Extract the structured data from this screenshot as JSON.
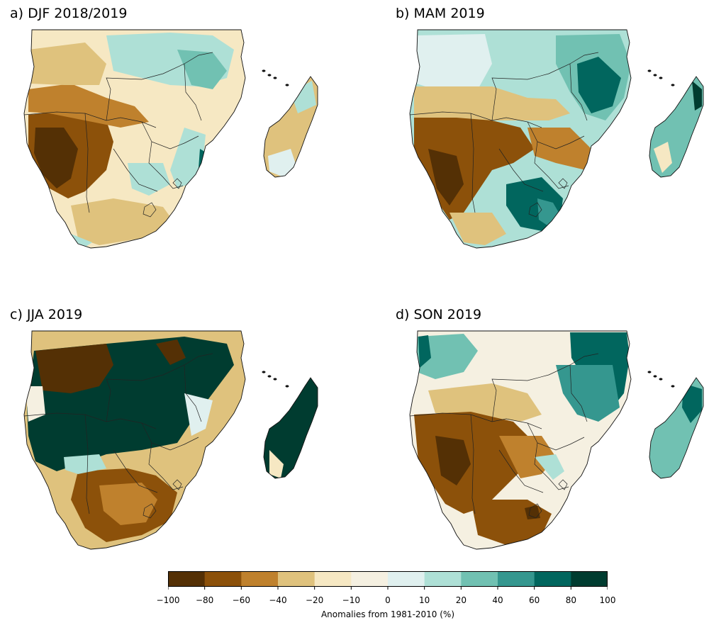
{
  "panels": [
    {
      "id": "a",
      "title": "a) DJF 2018/2019",
      "pattern": "djf"
    },
    {
      "id": "b",
      "title": "b) MAM 2019",
      "pattern": "mam"
    },
    {
      "id": "c",
      "title": "c) JJA 2019",
      "pattern": "jja"
    },
    {
      "id": "d",
      "title": "d) SON 2019",
      "pattern": "son"
    }
  ],
  "colorbar": {
    "label": "Anomalies from 1981-2010 (%)",
    "ticks": [
      "−100",
      "−80",
      "−60",
      "−40",
      "−20",
      "−10",
      "0",
      "10",
      "20",
      "40",
      "60",
      "80",
      "100"
    ],
    "colors": [
      "#543005",
      "#8c510a",
      "#bf812d",
      "#dfc27d",
      "#f6e8c3",
      "#f5f0e1",
      "#e0f0ef",
      "#aee0d6",
      "#71c1b2",
      "#35978f",
      "#01665e",
      "#003c30"
    ]
  }
}
